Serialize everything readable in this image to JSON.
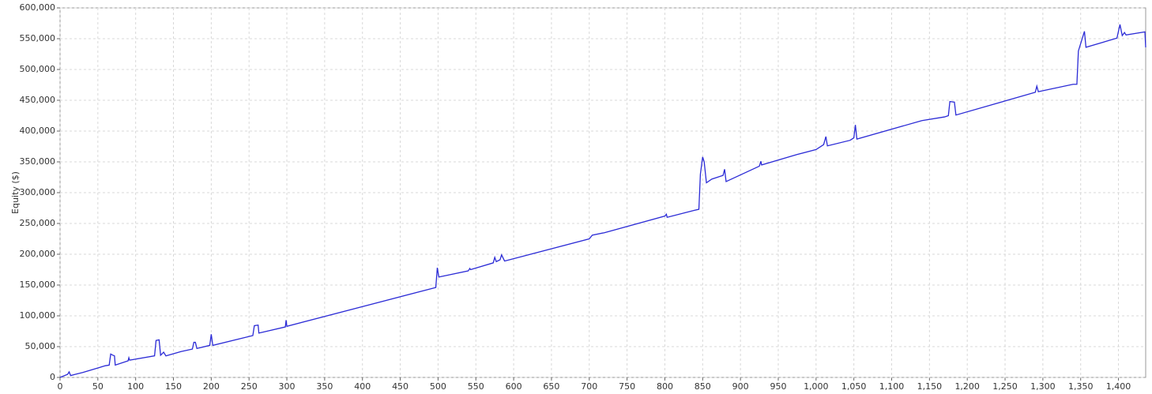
{
  "chart_data": {
    "type": "line",
    "ylabel": "Equity ($)",
    "color": "#2b2bd6",
    "grid": true,
    "xlim": [
      0,
      1436
    ],
    "ylim": [
      0,
      600000
    ],
    "xticks": [
      0,
      50,
      100,
      150,
      200,
      250,
      300,
      350,
      400,
      450,
      500,
      550,
      600,
      650,
      700,
      750,
      800,
      850,
      900,
      950,
      {
        "value": 1000,
        "label": "1,000"
      },
      {
        "value": 1050,
        "label": "1,050"
      },
      {
        "value": 1100,
        "label": "1,100"
      },
      {
        "value": 1150,
        "label": "1,150"
      },
      {
        "value": 1200,
        "label": "1,200"
      },
      {
        "value": 1250,
        "label": "1,250"
      },
      {
        "value": 1300,
        "label": "1,300"
      },
      {
        "value": 1350,
        "label": "1,350"
      },
      {
        "value": 1400,
        "label": "1,400"
      }
    ],
    "yticks": [
      0,
      {
        "value": 50000,
        "label": "50,000"
      },
      {
        "value": 100000,
        "label": "100,000"
      },
      {
        "value": 150000,
        "label": "150,000"
      },
      {
        "value": 200000,
        "label": "200,000"
      },
      {
        "value": 250000,
        "label": "250,000"
      },
      {
        "value": 300000,
        "label": "300,000"
      },
      {
        "value": 350000,
        "label": "350,000"
      },
      {
        "value": 400000,
        "label": "400,000"
      },
      {
        "value": 450000,
        "label": "450,000"
      },
      {
        "value": 500000,
        "label": "500,000"
      },
      {
        "value": 550000,
        "label": "550,000"
      },
      {
        "value": 600000,
        "label": "600,000"
      }
    ],
    "x": [
      0,
      10,
      12,
      14,
      20,
      30,
      60,
      65,
      67,
      70,
      72,
      73,
      90,
      91,
      92,
      125,
      127,
      131,
      133,
      137,
      140,
      160,
      175,
      177,
      179,
      181,
      198,
      200,
      202,
      255,
      257,
      262,
      263,
      298,
      299,
      300,
      497,
      499,
      501,
      540,
      542,
      543,
      573,
      575,
      577,
      582,
      584,
      588,
      700,
      704,
      720,
      800,
      802,
      803,
      838,
      845,
      847,
      850,
      852,
      855,
      862,
      877,
      879,
      881,
      925,
      927,
      928,
      975,
      1000,
      1010,
      1013,
      1015,
      1045,
      1050,
      1052,
      1054,
      1140,
      1170,
      1175,
      1177,
      1183,
      1185,
      1290,
      1292,
      1294,
      1340,
      1345,
      1347,
      1355,
      1357,
      1398,
      1402,
      1405,
      1408,
      1410,
      1435,
      1436
    ],
    "values": [
      0,
      5000,
      9000,
      3000,
      5000,
      8000,
      19000,
      20000,
      38000,
      36000,
      35000,
      20000,
      27000,
      32000,
      28000,
      35000,
      60000,
      61000,
      36000,
      41000,
      35000,
      42000,
      46000,
      57000,
      57000,
      47000,
      52000,
      70000,
      52000,
      68000,
      84000,
      85000,
      72000,
      82000,
      93000,
      83000,
      146000,
      178000,
      163000,
      173000,
      177000,
      175000,
      186000,
      195000,
      188000,
      191000,
      199000,
      189000,
      225000,
      231000,
      235000,
      262000,
      265000,
      260000,
      271000,
      273000,
      330000,
      358000,
      350000,
      316000,
      322000,
      328000,
      338000,
      318000,
      343000,
      351000,
      345000,
      362000,
      370000,
      378000,
      391000,
      376000,
      385000,
      389000,
      410000,
      387000,
      417000,
      423000,
      425000,
      448000,
      447000,
      426000,
      463000,
      473000,
      464000,
      476000,
      476000,
      530000,
      562000,
      536000,
      551000,
      573000,
      555000,
      560000,
      556000,
      561000,
      536000
    ]
  }
}
